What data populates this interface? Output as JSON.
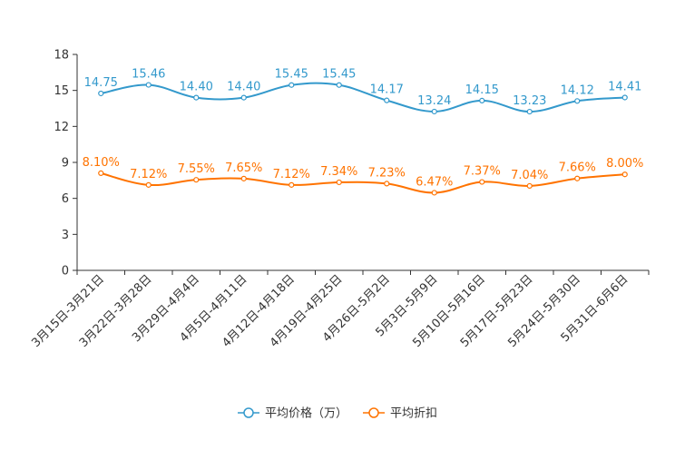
{
  "chart_data": {
    "type": "line",
    "title": "",
    "xlabel": "",
    "ylabel": "",
    "ylim": [
      0,
      18
    ],
    "yticks": [
      0,
      3,
      6,
      9,
      12,
      15,
      18
    ],
    "grid": false,
    "legend_position": "bottom",
    "categories": [
      "3月15日-3月21日",
      "3月22日-3月28日",
      "3月29日-4月4日",
      "4月5日-4月11日",
      "4月12日-4月18日",
      "4月19日-4月25日",
      "4月26日-5月2日",
      "5月3日-5月9日",
      "5月10日-5月16日",
      "5月17日-5月23日",
      "5月24日-5月30日",
      "5月31日-6月6日"
    ],
    "series": [
      {
        "name": "平均价格（万）",
        "color": "#3399cc",
        "values": [
          14.75,
          15.46,
          14.4,
          14.4,
          15.45,
          15.45,
          14.17,
          13.24,
          14.15,
          13.23,
          14.12,
          14.41
        ],
        "labels": [
          "14.75",
          "15.46",
          "14.40",
          "14.40",
          "15.45",
          "15.45",
          "14.17",
          "13.24",
          "14.15",
          "13.23",
          "14.12",
          "14.41"
        ]
      },
      {
        "name": "平均折扣",
        "color": "#ff7300",
        "values": [
          8.1,
          7.12,
          7.55,
          7.65,
          7.12,
          7.34,
          7.23,
          6.47,
          7.37,
          7.04,
          7.66,
          8.0
        ],
        "labels": [
          "8.10%",
          "7.12%",
          "7.55%",
          "7.65%",
          "7.12%",
          "7.34%",
          "7.23%",
          "6.47%",
          "7.37%",
          "7.04%",
          "7.66%",
          "8.00%"
        ]
      }
    ]
  }
}
